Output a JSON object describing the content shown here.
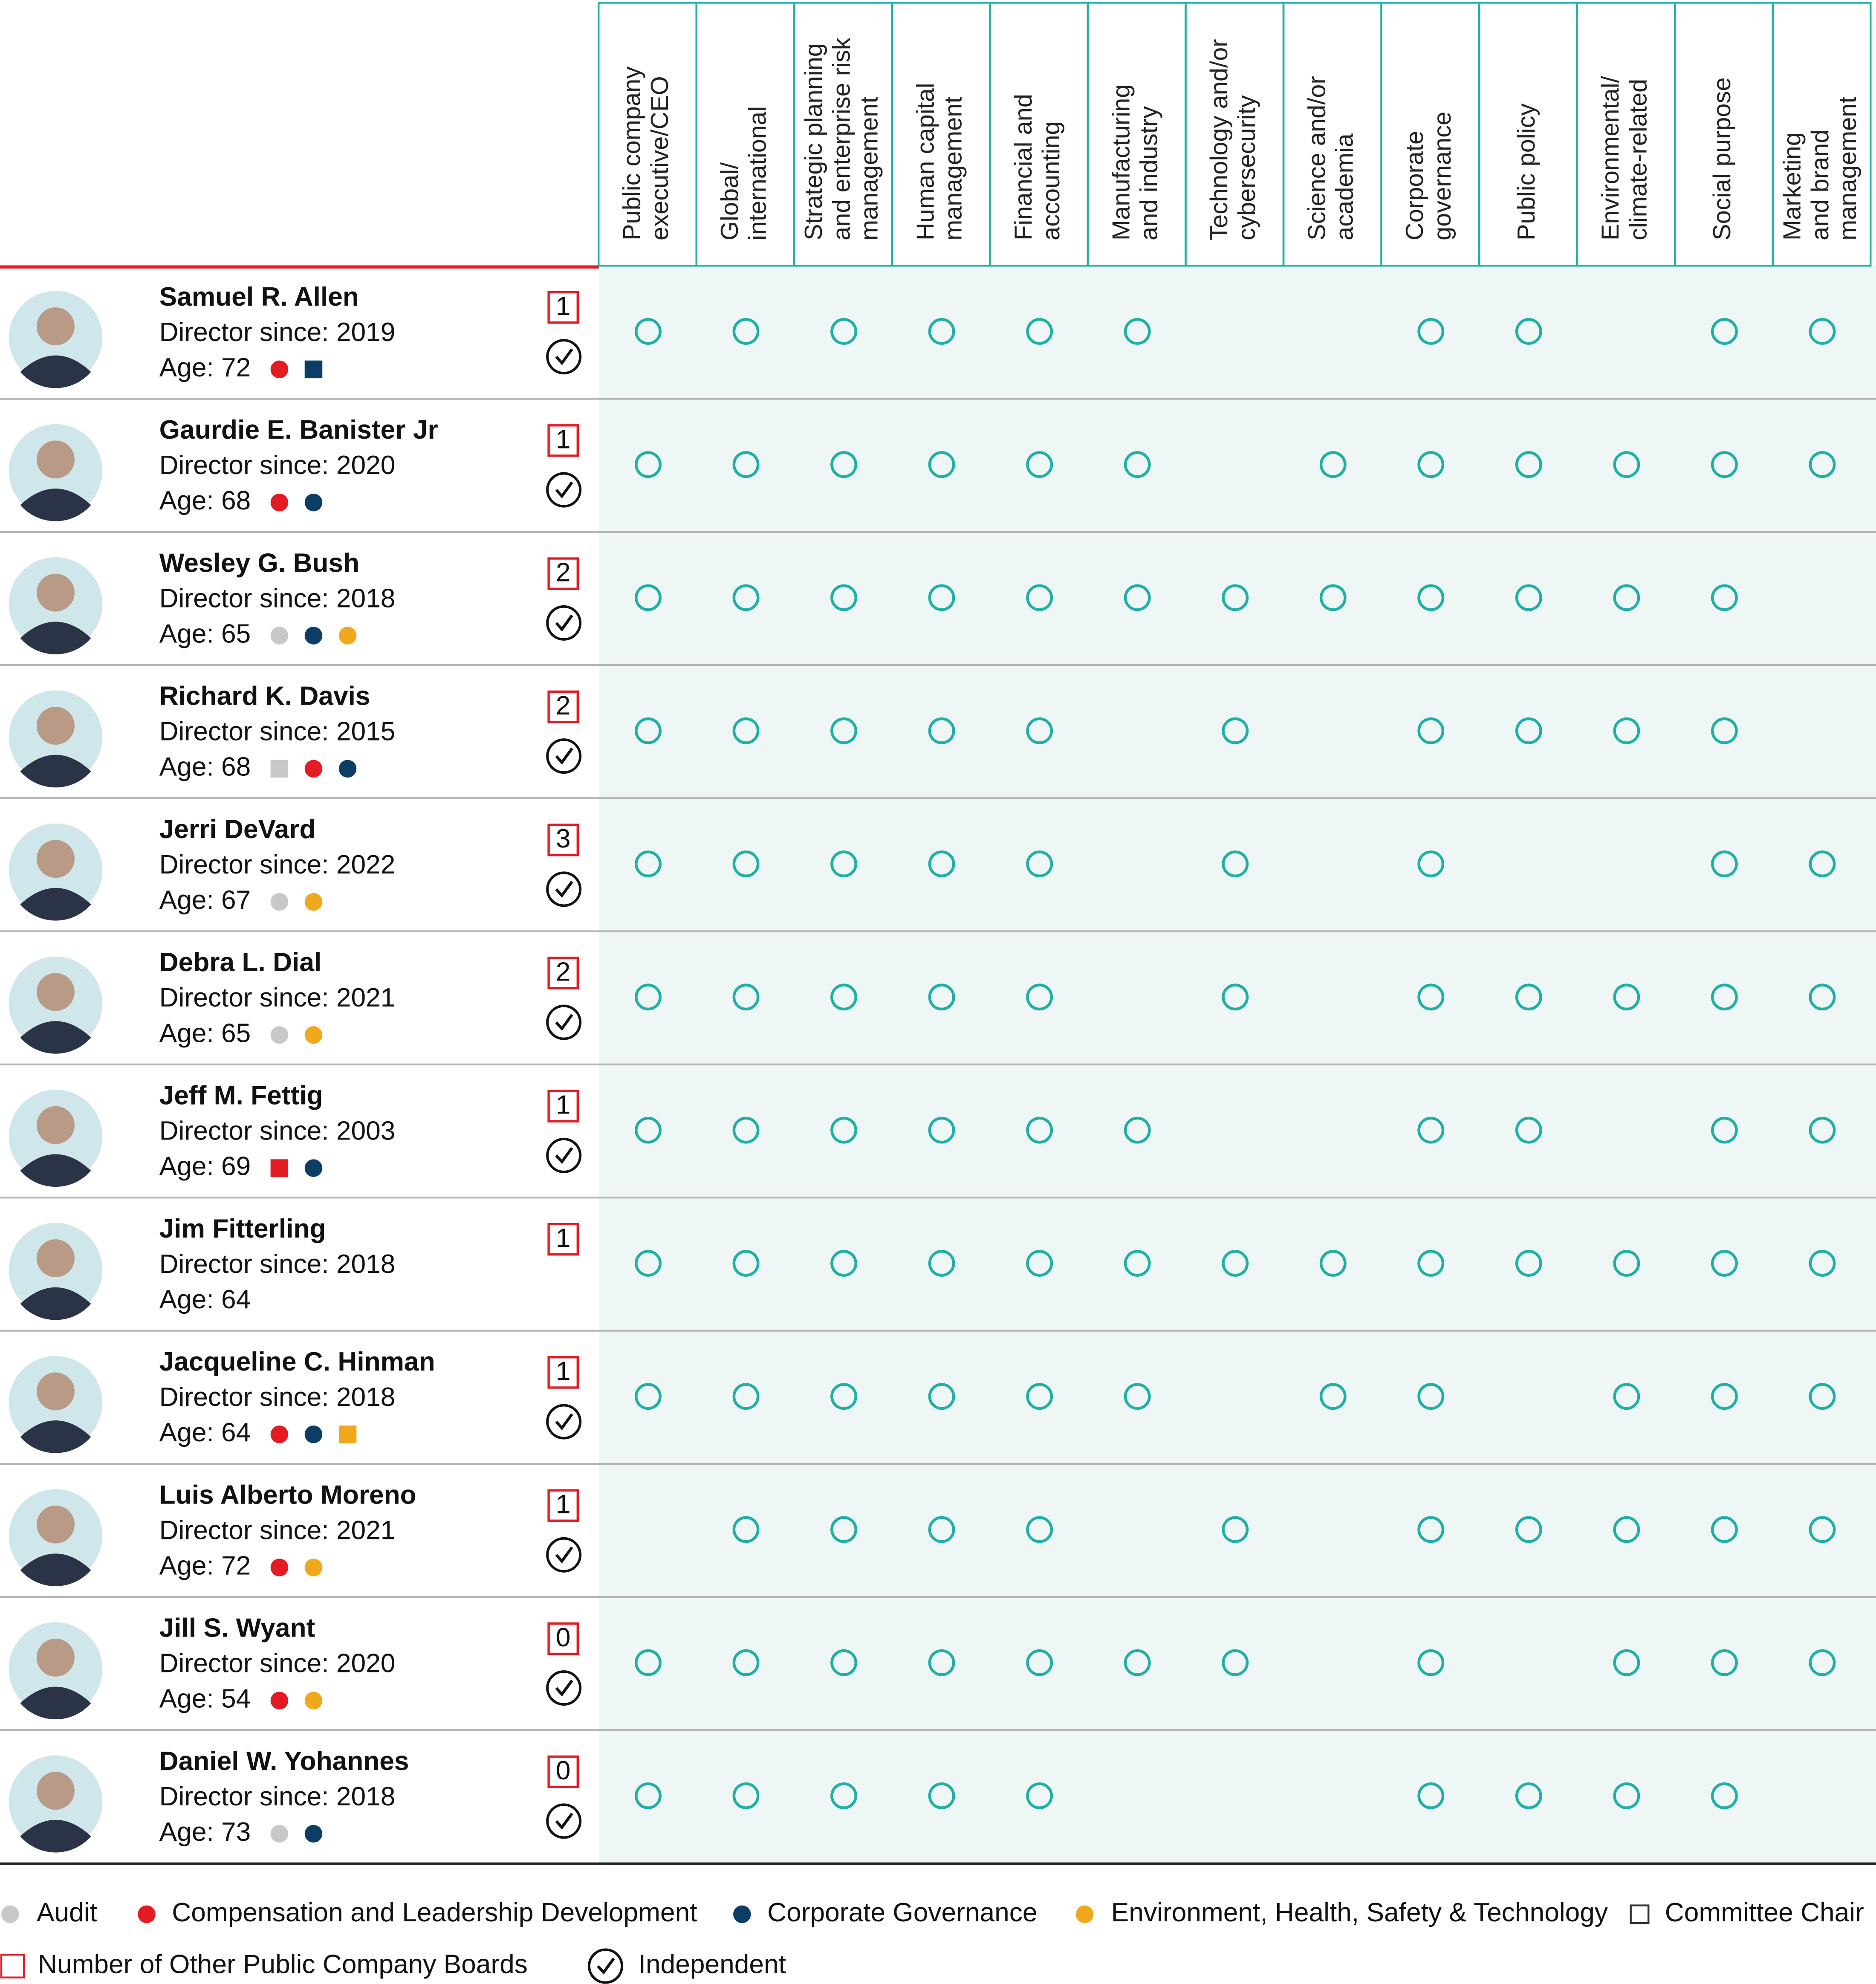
{
  "columns": [
    [
      "Public company",
      "executive/CEO"
    ],
    [
      "Global/",
      "international"
    ],
    [
      "Strategic planning",
      "and enterprise risk",
      "management"
    ],
    [
      "Human capital",
      "management"
    ],
    [
      "Financial and",
      "accounting"
    ],
    [
      "Manufacturing",
      "and industry"
    ],
    [
      "Technology and/or",
      "cybersecurity"
    ],
    [
      "Science and/or",
      "academia"
    ],
    [
      "Corporate",
      "governance"
    ],
    [
      "Public policy"
    ],
    [
      "Environmental/",
      "climate-related"
    ],
    [
      "Social purpose"
    ],
    [
      "Marketing",
      "and brand",
      "management"
    ]
  ],
  "directors": [
    {
      "name": "Samuel R. Allen",
      "since": "Director since: 2019",
      "age": "Age: 72",
      "boards": "1",
      "independent": true,
      "committees": [
        {
          "color": "#e31b23",
          "chair": false
        },
        {
          "color": "#0b3d66",
          "chair": true
        }
      ],
      "skills": [
        true,
        true,
        true,
        true,
        true,
        true,
        false,
        false,
        true,
        true,
        false,
        true,
        true
      ]
    },
    {
      "name": "Gaurdie E. Banister Jr",
      "since": "Director since: 2020",
      "age": "Age: 68",
      "boards": "1",
      "independent": true,
      "committees": [
        {
          "color": "#e31b23",
          "chair": false
        },
        {
          "color": "#0b3d66",
          "chair": false
        }
      ],
      "skills": [
        true,
        true,
        true,
        true,
        true,
        true,
        false,
        true,
        true,
        true,
        true,
        true,
        true
      ]
    },
    {
      "name": "Wesley G. Bush",
      "since": "Director since: 2018",
      "age": "Age: 65",
      "boards": "2",
      "independent": true,
      "committees": [
        {
          "color": "#c8c8c8",
          "chair": false
        },
        {
          "color": "#0b3d66",
          "chair": false
        },
        {
          "color": "#f0a81c",
          "chair": false
        }
      ],
      "skills": [
        true,
        true,
        true,
        true,
        true,
        true,
        true,
        true,
        true,
        true,
        true,
        true,
        false
      ]
    },
    {
      "name": "Richard K. Davis",
      "since": "Director since: 2015",
      "age": "Age: 68",
      "boards": "2",
      "independent": true,
      "committees": [
        {
          "color": "#c8c8c8",
          "chair": true
        },
        {
          "color": "#e31b23",
          "chair": false
        },
        {
          "color": "#0b3d66",
          "chair": false
        }
      ],
      "skills": [
        true,
        true,
        true,
        true,
        true,
        false,
        true,
        false,
        true,
        true,
        true,
        true,
        false
      ]
    },
    {
      "name": "Jerri DeVard",
      "since": "Director since: 2022",
      "age": "Age: 67",
      "boards": "3",
      "independent": true,
      "committees": [
        {
          "color": "#c8c8c8",
          "chair": false
        },
        {
          "color": "#f0a81c",
          "chair": false
        }
      ],
      "skills": [
        true,
        true,
        true,
        true,
        true,
        false,
        true,
        false,
        true,
        false,
        false,
        true,
        true
      ]
    },
    {
      "name": "Debra L. Dial",
      "since": "Director since: 2021",
      "age": "Age: 65",
      "boards": "2",
      "independent": true,
      "committees": [
        {
          "color": "#c8c8c8",
          "chair": false
        },
        {
          "color": "#f0a81c",
          "chair": false
        }
      ],
      "skills": [
        true,
        true,
        true,
        true,
        true,
        false,
        true,
        false,
        true,
        true,
        true,
        true,
        true
      ]
    },
    {
      "name": "Jeff M. Fettig",
      "since": "Director since: 2003",
      "age": "Age: 69",
      "boards": "1",
      "independent": true,
      "committees": [
        {
          "color": "#e31b23",
          "chair": true
        },
        {
          "color": "#0b3d66",
          "chair": false
        }
      ],
      "skills": [
        true,
        true,
        true,
        true,
        true,
        true,
        false,
        false,
        true,
        true,
        false,
        true,
        true
      ]
    },
    {
      "name": "Jim Fitterling",
      "since": "Director since: 2018",
      "age": "Age: 64",
      "boards": "1",
      "independent": false,
      "committees": [],
      "skills": [
        true,
        true,
        true,
        true,
        true,
        true,
        true,
        true,
        true,
        true,
        true,
        true,
        true
      ]
    },
    {
      "name": "Jacqueline C. Hinman",
      "since": "Director since: 2018",
      "age": "Age: 64",
      "boards": "1",
      "independent": true,
      "committees": [
        {
          "color": "#e31b23",
          "chair": false
        },
        {
          "color": "#0b3d66",
          "chair": false
        },
        {
          "color": "#f0a81c",
          "chair": true
        }
      ],
      "skills": [
        true,
        true,
        true,
        true,
        true,
        true,
        false,
        true,
        true,
        false,
        true,
        true,
        true
      ]
    },
    {
      "name": "Luis Alberto Moreno",
      "since": "Director since: 2021",
      "age": "Age: 72",
      "boards": "1",
      "independent": true,
      "committees": [
        {
          "color": "#e31b23",
          "chair": false
        },
        {
          "color": "#f0a81c",
          "chair": false
        }
      ],
      "skills": [
        false,
        true,
        true,
        true,
        true,
        false,
        true,
        false,
        true,
        true,
        true,
        true,
        true
      ]
    },
    {
      "name": "Jill S. Wyant",
      "since": "Director since: 2020",
      "age": "Age: 54",
      "boards": "0",
      "independent": true,
      "committees": [
        {
          "color": "#e31b23",
          "chair": false
        },
        {
          "color": "#f0a81c",
          "chair": false
        }
      ],
      "skills": [
        true,
        true,
        true,
        true,
        true,
        true,
        true,
        false,
        true,
        false,
        true,
        true,
        true
      ]
    },
    {
      "name": "Daniel W. Yohannes",
      "since": "Director since: 2018",
      "age": "Age: 73",
      "boards": "0",
      "independent": true,
      "committees": [
        {
          "color": "#c8c8c8",
          "chair": false
        },
        {
          "color": "#0b3d66",
          "chair": false
        }
      ],
      "skills": [
        true,
        true,
        true,
        true,
        true,
        false,
        false,
        false,
        true,
        true,
        true,
        true,
        false
      ]
    }
  ],
  "legend": [
    {
      "label": "Audit",
      "shape": "dot",
      "color": "#c8c8c8"
    },
    {
      "label": "Compensation and Leadership Development",
      "shape": "dot",
      "color": "#e31b23"
    },
    {
      "label": "Corporate Governance",
      "shape": "dot",
      "color": "#0b3d66"
    },
    {
      "label": "Environment, Health, Safety & Technology",
      "shape": "dot",
      "color": "#f0a81c"
    },
    {
      "label": "Committee Chair",
      "shape": "square",
      "color": "#333333"
    },
    {
      "label": "Number of Other Public Company Boards",
      "shape": "box",
      "color": "#e31b23"
    },
    {
      "label": "Independent",
      "shape": "check",
      "color": "#111111"
    }
  ]
}
